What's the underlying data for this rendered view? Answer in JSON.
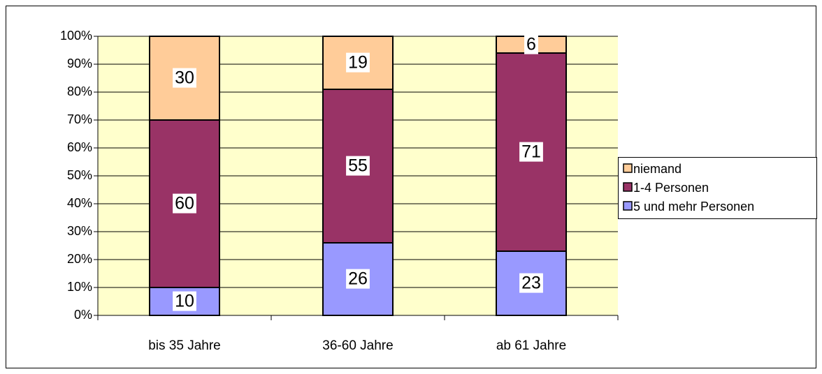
{
  "chart_data": {
    "type": "stacked_bar",
    "categories": [
      "bis 35 Jahre",
      "36-60 Jahre",
      "ab 61 Jahre"
    ],
    "series": [
      {
        "name": "5 und mehr Personen",
        "color": "#9999ff",
        "values": [
          10,
          26,
          23
        ]
      },
      {
        "name": "1-4 Personen",
        "color": "#993366",
        "values": [
          60,
          55,
          71
        ]
      },
      {
        "name": "niemand",
        "color": "#ffcc99",
        "values": [
          30,
          19,
          6
        ]
      }
    ],
    "ylim": [
      0,
      100
    ],
    "yticks": [
      {
        "value": 0,
        "label": "0%"
      },
      {
        "value": 10,
        "label": "10%"
      },
      {
        "value": 20,
        "label": "20%"
      },
      {
        "value": 30,
        "label": "30%"
      },
      {
        "value": 40,
        "label": "40%"
      },
      {
        "value": 50,
        "label": "50%"
      },
      {
        "value": 60,
        "label": "60%"
      },
      {
        "value": 70,
        "label": "70%"
      },
      {
        "value": 80,
        "label": "80%"
      },
      {
        "value": 90,
        "label": "90%"
      },
      {
        "value": 100,
        "label": "100%"
      }
    ],
    "grid": true,
    "legend": "right",
    "plot_background": "#ffffcc"
  }
}
